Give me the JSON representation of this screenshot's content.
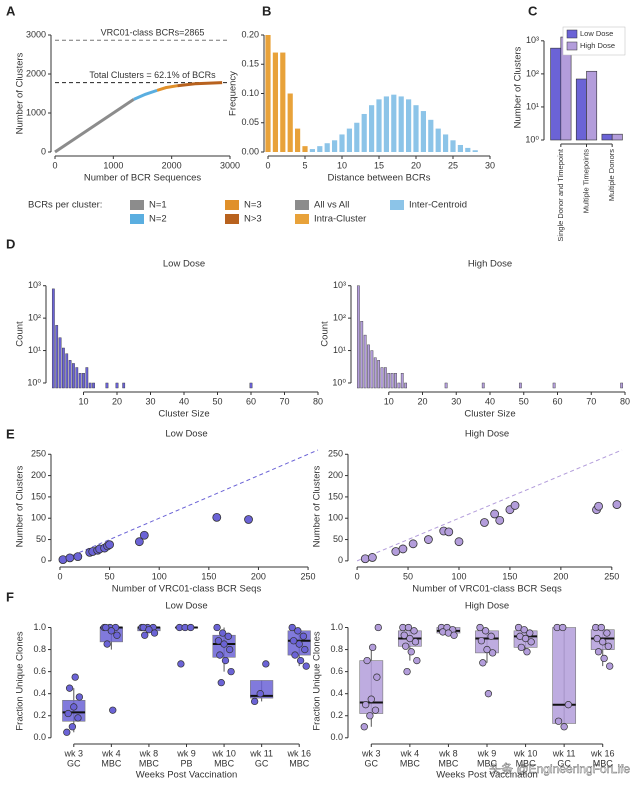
{
  "watermark": "头条 @EngineeringForLife",
  "chart_data": [
    {
      "panel": "A",
      "type": "line",
      "xlabel": "Number of BCR Sequences",
      "ylabel": "Number of Clusters",
      "xlim": [
        0,
        3000
      ],
      "ylim": [
        0,
        3000
      ],
      "xticks": [
        0,
        1000,
        2000,
        3000
      ],
      "yticks": [
        0,
        1000,
        2000,
        3000
      ],
      "legend_title": "BCRs per cluster:",
      "legend": "bottom",
      "annotations": [
        {
          "text": "VRC01-class BCRs=2865",
          "y": 2865
        },
        {
          "text": "Total Clusters = 62.1% of BCRs",
          "y": 1779
        }
      ],
      "series": [
        {
          "name": "N=1",
          "color": "#8c8c8c",
          "x": [
            0,
            1350
          ],
          "values": [
            0,
            1350
          ]
        },
        {
          "name": "N=2",
          "color": "#5aaee0",
          "x": [
            1350,
            1550,
            1750
          ],
          "values": [
            1350,
            1480,
            1580
          ]
        },
        {
          "name": "N=3",
          "color": "#e0902a",
          "x": [
            1750,
            1900,
            2100
          ],
          "values": [
            1580,
            1650,
            1700
          ]
        },
        {
          "name": "N>3",
          "color": "#b8621e",
          "x": [
            2100,
            2400,
            2865
          ],
          "values": [
            1700,
            1750,
            1779
          ]
        }
      ]
    },
    {
      "panel": "B",
      "type": "bar",
      "xlabel": "Distance between BCRs",
      "ylabel": "Frequency",
      "xlim": [
        0,
        30
      ],
      "ylim": [
        0,
        0.2
      ],
      "xticks": [
        0,
        5,
        10,
        15,
        20,
        25,
        30
      ],
      "yticks": [
        {
          "value": 0,
          "label": "0.00"
        },
        0.05,
        {
          "value": 0.1,
          "label": "0.10"
        },
        0.15,
        {
          "value": 0.2,
          "label": "0.20"
        }
      ],
      "legend": "bottom",
      "series": [
        {
          "name": "All vs All",
          "color": "#8c8c8c",
          "x": [],
          "values": []
        },
        {
          "name": "Intra-Cluster",
          "color": "#e8a23a",
          "x": [
            0,
            1,
            2,
            3,
            4,
            5
          ],
          "values": [
            0.2,
            0.17,
            0.17,
            0.1,
            0.04,
            0.01
          ]
        },
        {
          "name": "Inter-Centroid",
          "color": "#8cc4e8",
          "x": [
            6,
            7,
            8,
            9,
            10,
            11,
            12,
            13,
            14,
            15,
            16,
            17,
            18,
            19,
            20,
            21,
            22,
            23,
            24,
            25,
            26,
            27,
            28
          ],
          "values": [
            0.005,
            0.01,
            0.015,
            0.02,
            0.03,
            0.04,
            0.05,
            0.065,
            0.08,
            0.09,
            0.095,
            0.098,
            0.095,
            0.09,
            0.08,
            0.07,
            0.055,
            0.04,
            0.03,
            0.02,
            0.012,
            0.007,
            0.003
          ]
        }
      ]
    },
    {
      "panel": "C",
      "type": "bar",
      "ylabel": "Number of Clusters",
      "log_y": true,
      "ylim": [
        1,
        1500
      ],
      "yticks": [
        {
          "value": 1,
          "label": "10⁰"
        },
        {
          "value": 10,
          "label": "10¹"
        },
        {
          "value": 100,
          "label": "10²"
        },
        {
          "value": 1000,
          "label": "10³"
        }
      ],
      "categories": [
        "Single Donor and Timepoint",
        "Multiple Timepoints",
        "Multiple Donors"
      ],
      "legend": "top-right",
      "series": [
        {
          "name": "Low Dose",
          "color": "#6b63d6",
          "values": [
            600,
            70,
            1.5
          ]
        },
        {
          "name": "High Dose",
          "color": "#b39ddb",
          "values": [
            1300,
            120,
            1.5
          ]
        }
      ]
    },
    {
      "panel": "D",
      "title": "Low Dose",
      "type": "bar",
      "xlabel": "Cluster Size",
      "ylabel": "Count",
      "log_y": true,
      "xlim": [
        0,
        80
      ],
      "ylim": [
        0.7,
        1500
      ],
      "xticks": [
        10,
        20,
        30,
        40,
        50,
        60,
        70,
        80
      ],
      "yticks": [
        {
          "value": 1,
          "label": "10⁰"
        },
        {
          "value": 10,
          "label": "10¹"
        },
        {
          "value": 100,
          "label": "10²"
        },
        {
          "value": 1000,
          "label": "10³"
        }
      ],
      "series": [
        {
          "color": "#6b63d6",
          "x": [
            1,
            2,
            3,
            4,
            5,
            6,
            7,
            8,
            9,
            10,
            11,
            12,
            13,
            17,
            20,
            22,
            60
          ],
          "values": [
            800,
            60,
            25,
            12,
            8,
            5,
            4,
            3,
            2,
            2,
            3,
            1,
            1,
            1,
            1,
            1,
            1
          ]
        }
      ]
    },
    {
      "title": "High Dose",
      "type": "bar",
      "xlabel": "Cluster Size",
      "ylabel": "Count",
      "log_y": true,
      "xlim": [
        0,
        80
      ],
      "ylim": [
        0.7,
        1500
      ],
      "xticks": [
        10,
        20,
        30,
        40,
        50,
        60,
        70,
        80
      ],
      "yticks": [
        {
          "value": 1,
          "label": "10⁰"
        },
        {
          "value": 10,
          "label": "10¹"
        },
        {
          "value": 100,
          "label": "10²"
        },
        {
          "value": 1000,
          "label": "10³"
        }
      ],
      "series": [
        {
          "color": "#b39ddb",
          "x": [
            1,
            2,
            3,
            4,
            5,
            6,
            7,
            8,
            9,
            10,
            11,
            12,
            13,
            14,
            15,
            27,
            38,
            49,
            59,
            79
          ],
          "values": [
            1000,
            80,
            30,
            15,
            10,
            6,
            5,
            3,
            3,
            2,
            2,
            2,
            1,
            2,
            1,
            1,
            1,
            1,
            1,
            1
          ]
        }
      ]
    },
    {
      "panel": "E",
      "title": "Low Dose",
      "type": "scatter",
      "xlabel": "Number of VRC01-class BCR Seqs",
      "ylabel": "Number of Clusters",
      "xlim": [
        -5,
        260
      ],
      "ylim": [
        -5,
        260
      ],
      "xticks": [
        0,
        50,
        100,
        150,
        200,
        250
      ],
      "yticks": [
        0,
        50,
        100,
        150,
        200,
        250
      ],
      "identity_line": true,
      "series": [
        {
          "color": "#6b63d6",
          "x": [
            3,
            10,
            18,
            30,
            33,
            38,
            40,
            45,
            48,
            50,
            80,
            85,
            158,
            190
          ],
          "values": [
            3,
            7,
            10,
            20,
            22,
            25,
            28,
            30,
            35,
            38,
            45,
            60,
            102,
            97
          ]
        }
      ]
    },
    {
      "title": "High Dose",
      "type": "scatter",
      "xlabel": "Number of VRC01-class BCR Seqs",
      "ylabel": "Number of Clusters",
      "xlim": [
        -5,
        260
      ],
      "ylim": [
        -5,
        260
      ],
      "xticks": [
        0,
        50,
        100,
        150,
        200,
        250
      ],
      "yticks": [
        0,
        50,
        100,
        150,
        200,
        250
      ],
      "identity_line": true,
      "series": [
        {
          "color": "#b39ddb",
          "x": [
            8,
            15,
            38,
            45,
            55,
            70,
            85,
            90,
            100,
            125,
            135,
            140,
            150,
            155,
            235,
            237,
            255
          ],
          "values": [
            5,
            8,
            22,
            28,
            40,
            50,
            70,
            68,
            45,
            90,
            110,
            95,
            120,
            130,
            120,
            128,
            132
          ]
        }
      ]
    },
    {
      "panel": "F",
      "title": "Low Dose",
      "type": "box",
      "xlabel": "Weeks Post Vaccination",
      "ylabel": "Fraction Unique Clones",
      "ylim": [
        -0.02,
        1.05
      ],
      "yticks": [
        {
          "value": 0,
          "label": "0.0"
        },
        0.2,
        0.4,
        0.6,
        0.8,
        {
          "value": 1,
          "label": "1.0"
        }
      ],
      "categories": [
        "wk 3",
        "wk 4",
        "wk 8",
        "wk 9",
        "wk 10",
        "wk 11",
        "wk 16"
      ],
      "subcategories": [
        "GC",
        "MBC",
        "MBC",
        "PB",
        "MBC",
        "GC",
        "MBC"
      ],
      "color": "#6b63d6",
      "boxes": [
        {
          "q1": 0.15,
          "median": 0.23,
          "q3": 0.34,
          "whisker_low": 0.05,
          "whisker_high": 0.45,
          "points": [
            0.05,
            0.1,
            0.18,
            0.22,
            0.28,
            0.37,
            0.45,
            0.55
          ]
        },
        {
          "q1": 0.87,
          "median": 1,
          "q3": 1,
          "whisker_low": 0.8,
          "whisker_high": 1,
          "points": [
            1,
            1,
            1,
            1,
            0.97,
            0.93,
            0.85,
            0.25
          ]
        },
        {
          "q1": 0.97,
          "median": 1,
          "q3": 1,
          "whisker_low": 0.95,
          "whisker_high": 1,
          "points": [
            1,
            1,
            1,
            1,
            0.98,
            0.95,
            0.93
          ]
        },
        {
          "q1": 1,
          "median": 1,
          "q3": 1,
          "whisker_low": 1,
          "whisker_high": 1,
          "points": [
            1,
            1,
            1,
            0.67
          ]
        },
        {
          "q1": 0.73,
          "median": 0.85,
          "q3": 0.93,
          "whisker_low": 0.6,
          "whisker_high": 1,
          "points": [
            1,
            0.95,
            0.92,
            0.88,
            0.85,
            0.8,
            0.75,
            0.7,
            0.6,
            0.5
          ]
        },
        {
          "q1": 0.36,
          "median": 0.38,
          "q3": 0.52,
          "whisker_low": 0.33,
          "whisker_high": 0.52,
          "points": [
            0.33,
            0.4,
            0.67
          ]
        },
        {
          "q1": 0.75,
          "median": 0.88,
          "q3": 0.97,
          "whisker_low": 0.65,
          "whisker_high": 1,
          "points": [
            1,
            0.97,
            0.92,
            0.88,
            0.85,
            0.8,
            0.75,
            0.7,
            0.65
          ]
        }
      ]
    },
    {
      "title": "High Dose",
      "type": "box",
      "xlabel": "Weeks Post Vaccination",
      "ylabel": "Fraction Unique Clones",
      "ylim": [
        -0.02,
        1.05
      ],
      "yticks": [
        {
          "value": 0,
          "label": "0.0"
        },
        0.2,
        0.4,
        0.6,
        0.8,
        {
          "value": 1,
          "label": "1.0"
        }
      ],
      "categories": [
        "wk 3",
        "wk 4",
        "wk 8",
        "wk 9",
        "wk 10",
        "wk 11",
        "wk 16"
      ],
      "subcategories": [
        "GC",
        "MBC",
        "MBC",
        "MBC",
        "MBC",
        "GC",
        "MBC"
      ],
      "color": "#b39ddb",
      "boxes": [
        {
          "q1": 0.22,
          "median": 0.32,
          "q3": 0.7,
          "whisker_low": 0.1,
          "whisker_high": 0.82,
          "points": [
            0.1,
            0.2,
            0.25,
            0.3,
            0.35,
            0.55,
            0.7,
            0.82,
            1
          ]
        },
        {
          "q1": 0.83,
          "median": 0.9,
          "q3": 0.97,
          "whisker_low": 0.7,
          "whisker_high": 1,
          "points": [
            1,
            1,
            0.97,
            0.93,
            0.9,
            0.87,
            0.83,
            0.78,
            0.7,
            0.6
          ]
        },
        {
          "q1": 0.95,
          "median": 0.97,
          "q3": 1,
          "whisker_low": 0.92,
          "whisker_high": 1,
          "points": [
            1,
            1,
            0.98,
            0.96,
            0.95,
            0.93
          ]
        },
        {
          "q1": 0.77,
          "median": 0.9,
          "q3": 0.97,
          "whisker_low": 0.68,
          "whisker_high": 1,
          "points": [
            1,
            0.97,
            0.92,
            0.88,
            0.8,
            0.77,
            0.68,
            0.4
          ]
        },
        {
          "q1": 0.82,
          "median": 0.92,
          "q3": 0.97,
          "whisker_low": 0.75,
          "whisker_high": 1,
          "points": [
            1,
            0.98,
            0.95,
            0.92,
            0.9,
            0.87,
            0.82,
            0.78
          ]
        },
        {
          "q1": 0.13,
          "median": 0.3,
          "q3": 1,
          "whisker_low": 0.1,
          "whisker_high": 1,
          "points": [
            1,
            1,
            0.3,
            0.15,
            0.1
          ]
        },
        {
          "q1": 0.8,
          "median": 0.9,
          "q3": 0.98,
          "whisker_low": 0.65,
          "whisker_high": 1,
          "points": [
            1,
            1,
            0.95,
            0.9,
            0.87,
            0.83,
            0.78,
            0.72,
            0.65
          ]
        }
      ]
    }
  ]
}
